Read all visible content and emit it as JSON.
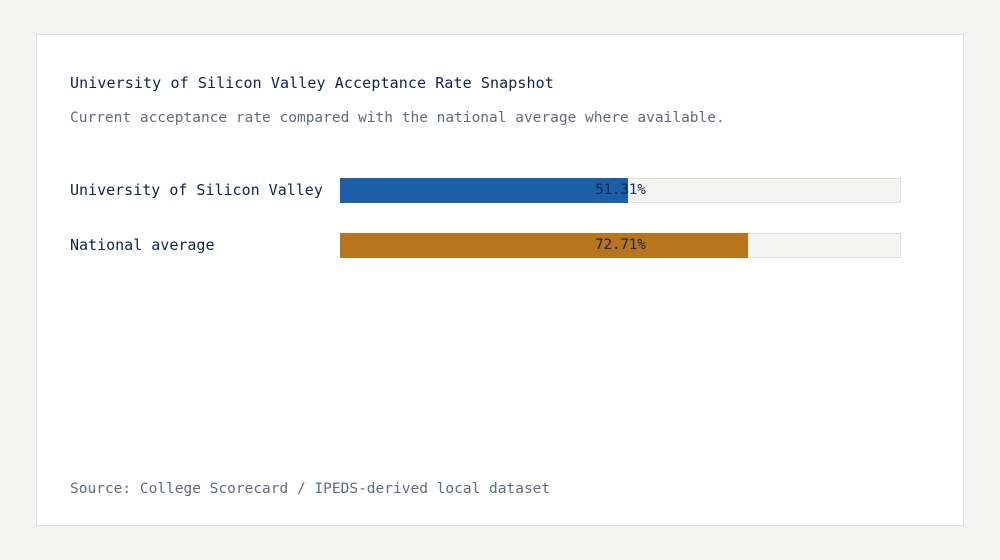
{
  "chart_data": {
    "type": "bar",
    "orientation": "horizontal",
    "title": "University of Silicon Valley Acceptance Rate Snapshot",
    "subtitle": "Current acceptance rate compared with the national average where available.",
    "categories": [
      "University of Silicon Valley",
      "National average"
    ],
    "values": [
      51.31,
      72.71
    ],
    "value_labels": [
      "51.31%",
      "72.71%"
    ],
    "colors": [
      "#1a5fa8",
      "#b8751b"
    ],
    "track_color": "#f3f3f1",
    "xlim": [
      0,
      100
    ],
    "grid": false,
    "source": "Source: College Scorecard / IPEDS-derived local dataset"
  }
}
